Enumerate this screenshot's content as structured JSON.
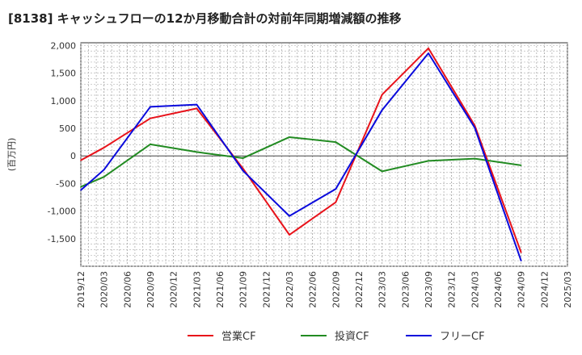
{
  "chart_data": {
    "type": "line",
    "title": "[8138]  キャッシュフローの12か月移動合計の対前年同期増減額の推移",
    "ylabel": "(百万円)",
    "xlabel": "",
    "ylim": [
      -2000,
      2050
    ],
    "yticks": [
      2000,
      1500,
      1000,
      500,
      0,
      -500,
      -1000,
      -1500
    ],
    "ytick_labels": [
      "2,000",
      "1,500",
      "1,000",
      "500",
      "0",
      "-500",
      "-1,000",
      "-1,500"
    ],
    "x_categories": [
      "2019/12",
      "2020/03",
      "2020/06",
      "2020/09",
      "2020/12",
      "2021/03",
      "2021/06",
      "2021/09",
      "2021/12",
      "2022/03",
      "2022/06",
      "2022/09",
      "2022/12",
      "2023/03",
      "2023/06",
      "2023/09",
      "2023/12",
      "2024/03",
      "2024/06",
      "2024/09",
      "2024/12",
      "2025/03"
    ],
    "grid": true,
    "legend_position": "bottom",
    "series": [
      {
        "name": "営業CF",
        "color": "#e8121a",
        "points": [
          {
            "x": "2019/12",
            "y": -80
          },
          {
            "x": "2020/03",
            "y": 150
          },
          {
            "x": "2020/09",
            "y": 680
          },
          {
            "x": "2021/03",
            "y": 860
          },
          {
            "x": "2021/09",
            "y": -230
          },
          {
            "x": "2022/03",
            "y": -1430
          },
          {
            "x": "2022/09",
            "y": -840
          },
          {
            "x": "2023/03",
            "y": 1110
          },
          {
            "x": "2023/09",
            "y": 1950
          },
          {
            "x": "2024/03",
            "y": 550
          },
          {
            "x": "2024/09",
            "y": -1750
          }
        ]
      },
      {
        "name": "投資CF",
        "color": "#228b22",
        "points": [
          {
            "x": "2019/12",
            "y": -560
          },
          {
            "x": "2020/03",
            "y": -380
          },
          {
            "x": "2020/09",
            "y": 210
          },
          {
            "x": "2021/03",
            "y": 70
          },
          {
            "x": "2021/09",
            "y": -40
          },
          {
            "x": "2022/03",
            "y": 340
          },
          {
            "x": "2022/09",
            "y": 250
          },
          {
            "x": "2023/03",
            "y": -280
          },
          {
            "x": "2023/09",
            "y": -90
          },
          {
            "x": "2024/03",
            "y": -50
          },
          {
            "x": "2024/09",
            "y": -170
          }
        ]
      },
      {
        "name": "フリーCF",
        "color": "#0a0adc",
        "points": [
          {
            "x": "2019/12",
            "y": -620
          },
          {
            "x": "2020/03",
            "y": -250
          },
          {
            "x": "2020/09",
            "y": 890
          },
          {
            "x": "2021/03",
            "y": 930
          },
          {
            "x": "2021/09",
            "y": -270
          },
          {
            "x": "2022/03",
            "y": -1090
          },
          {
            "x": "2022/09",
            "y": -600
          },
          {
            "x": "2023/03",
            "y": 830
          },
          {
            "x": "2023/09",
            "y": 1860
          },
          {
            "x": "2024/03",
            "y": 510
          },
          {
            "x": "2024/09",
            "y": -1900
          }
        ]
      }
    ]
  }
}
